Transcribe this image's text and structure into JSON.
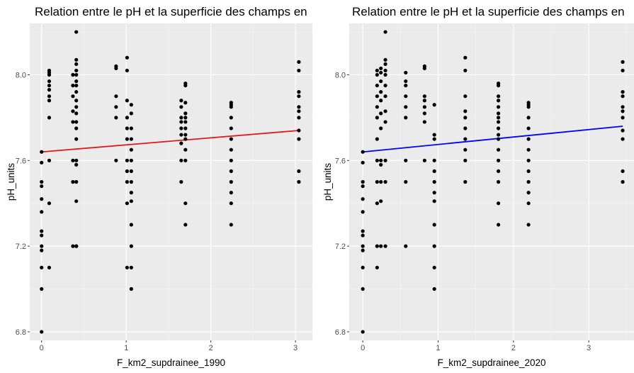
{
  "chart_data": [
    {
      "type": "scatter",
      "title": "Relation entre le pH et la superficie des champs en",
      "xlabel": "F_km2_supdrainee_1990",
      "ylabel": "pH_units",
      "xlim": [
        -0.14,
        3.2
      ],
      "ylim": [
        6.76,
        8.24
      ],
      "x_ticks": [
        0,
        1,
        2,
        3
      ],
      "x_tick_labels": [
        "0",
        "1",
        "2",
        "3"
      ],
      "y_ticks": [
        6.8,
        7.2,
        7.6,
        8.0
      ],
      "y_tick_labels": [
        "6.8",
        "7.2",
        "7.6",
        "8.0"
      ],
      "grid": true,
      "fit_line": {
        "x": [
          0,
          3.04
        ],
        "y": [
          7.64,
          7.74
        ],
        "color": "#e31a1c"
      },
      "points": [
        [
          0,
          6.8
        ],
        [
          0,
          7.0
        ],
        [
          0,
          7.1
        ],
        [
          0,
          7.18
        ],
        [
          0,
          7.2
        ],
        [
          0,
          7.25
        ],
        [
          0,
          7.27
        ],
        [
          0,
          7.36
        ],
        [
          0,
          7.42
        ],
        [
          0,
          7.48
        ],
        [
          0,
          7.5
        ],
        [
          0,
          7.59
        ],
        [
          0,
          7.64
        ],
        [
          0.09,
          7.1
        ],
        [
          0.09,
          7.4
        ],
        [
          0.09,
          7.6
        ],
        [
          0.09,
          7.8
        ],
        [
          0.09,
          7.88
        ],
        [
          0.09,
          7.9
        ],
        [
          0.09,
          7.93
        ],
        [
          0.09,
          7.95
        ],
        [
          0.09,
          7.97
        ],
        [
          0.09,
          8.0
        ],
        [
          0.09,
          8.01
        ],
        [
          0.09,
          8.02
        ],
        [
          0.41,
          7.2
        ],
        [
          0.41,
          7.2
        ],
        [
          0.41,
          7.41
        ],
        [
          0.41,
          7.5
        ],
        [
          0.41,
          7.58
        ],
        [
          0.41,
          7.6
        ],
        [
          0.41,
          7.7
        ],
        [
          0.41,
          7.75
        ],
        [
          0.41,
          7.78
        ],
        [
          0.41,
          7.82
        ],
        [
          0.41,
          7.85
        ],
        [
          0.41,
          7.88
        ],
        [
          0.41,
          7.92
        ],
        [
          0.41,
          7.95
        ],
        [
          0.41,
          7.97
        ],
        [
          0.41,
          8.0
        ],
        [
          0.41,
          8.02
        ],
        [
          0.41,
          8.05
        ],
        [
          0.41,
          8.07
        ],
        [
          0.41,
          8.2
        ],
        [
          0.37,
          7.2
        ],
        [
          0.37,
          7.5
        ],
        [
          0.37,
          7.6
        ],
        [
          0.37,
          7.78
        ],
        [
          0.37,
          7.83
        ],
        [
          0.37,
          7.9
        ],
        [
          0.37,
          7.95
        ],
        [
          0.37,
          8.0
        ],
        [
          0.88,
          7.6
        ],
        [
          0.88,
          7.8
        ],
        [
          0.88,
          7.85
        ],
        [
          0.88,
          7.9
        ],
        [
          0.88,
          8.03
        ],
        [
          0.88,
          8.04
        ],
        [
          1.01,
          7.1
        ],
        [
          1.01,
          7.4
        ],
        [
          1.01,
          7.5
        ],
        [
          1.01,
          7.55
        ],
        [
          1.01,
          7.6
        ],
        [
          1.01,
          7.7
        ],
        [
          1.01,
          7.75
        ],
        [
          1.01,
          7.8
        ],
        [
          1.01,
          7.88
        ],
        [
          1.01,
          8.02
        ],
        [
          1.01,
          8.08
        ],
        [
          1.06,
          7.0
        ],
        [
          1.06,
          7.1
        ],
        [
          1.06,
          7.2
        ],
        [
          1.06,
          7.3
        ],
        [
          1.06,
          7.41
        ],
        [
          1.06,
          7.45
        ],
        [
          1.06,
          7.5
        ],
        [
          1.06,
          7.55
        ],
        [
          1.06,
          7.6
        ],
        [
          1.06,
          7.65
        ],
        [
          1.06,
          7.7
        ],
        [
          1.06,
          7.75
        ],
        [
          1.06,
          7.82
        ],
        [
          1.06,
          7.86
        ],
        [
          1.65,
          7.5
        ],
        [
          1.65,
          7.6
        ],
        [
          1.65,
          7.68
        ],
        [
          1.65,
          7.72
        ],
        [
          1.65,
          7.75
        ],
        [
          1.65,
          7.78
        ],
        [
          1.65,
          7.8
        ],
        [
          1.65,
          7.85
        ],
        [
          1.65,
          7.88
        ],
        [
          1.7,
          7.3
        ],
        [
          1.7,
          7.4
        ],
        [
          1.7,
          7.6
        ],
        [
          1.7,
          7.65
        ],
        [
          1.7,
          7.7
        ],
        [
          1.7,
          7.72
        ],
        [
          1.7,
          7.75
        ],
        [
          1.7,
          7.78
        ],
        [
          1.7,
          7.8
        ],
        [
          1.7,
          7.82
        ],
        [
          1.7,
          7.87
        ],
        [
          1.7,
          7.95
        ],
        [
          1.7,
          7.96
        ],
        [
          2.24,
          7.3
        ],
        [
          2.24,
          7.4
        ],
        [
          2.24,
          7.45
        ],
        [
          2.24,
          7.5
        ],
        [
          2.24,
          7.55
        ],
        [
          2.24,
          7.6
        ],
        [
          2.24,
          7.65
        ],
        [
          2.24,
          7.7
        ],
        [
          2.24,
          7.75
        ],
        [
          2.24,
          7.8
        ],
        [
          2.24,
          7.85
        ],
        [
          2.24,
          7.86
        ],
        [
          2.24,
          7.87
        ],
        [
          3.04,
          7.5
        ],
        [
          3.04,
          7.55
        ],
        [
          3.04,
          7.7
        ],
        [
          3.04,
          7.74
        ],
        [
          3.04,
          7.8
        ],
        [
          3.04,
          7.83
        ],
        [
          3.04,
          7.85
        ],
        [
          3.04,
          7.9
        ],
        [
          3.04,
          7.92
        ],
        [
          3.04,
          8.02
        ],
        [
          3.04,
          8.06
        ]
      ]
    },
    {
      "type": "scatter",
      "title": "Relation entre le pH et la superficie des champs en",
      "xlabel": "F_km2_supdrainee_2020",
      "ylabel": "pH_units",
      "xlim": [
        -0.18,
        3.6
      ],
      "ylim": [
        6.76,
        8.24
      ],
      "x_ticks": [
        0,
        1,
        2,
        3
      ],
      "x_tick_labels": [
        "0",
        "1",
        "2",
        "3"
      ],
      "y_ticks": [
        6.8,
        7.2,
        7.6,
        8.0
      ],
      "y_tick_labels": [
        "6.8",
        "7.2",
        "7.6",
        "8.0"
      ],
      "grid": true,
      "fit_line": {
        "x": [
          0,
          3.45
        ],
        "y": [
          7.64,
          7.76
        ],
        "color": "#0000ff"
      },
      "points": [
        [
          0,
          6.8
        ],
        [
          0,
          7.0
        ],
        [
          0,
          7.1
        ],
        [
          0,
          7.18
        ],
        [
          0,
          7.2
        ],
        [
          0,
          7.25
        ],
        [
          0,
          7.27
        ],
        [
          0,
          7.36
        ],
        [
          0,
          7.42
        ],
        [
          0,
          7.48
        ],
        [
          0,
          7.5
        ],
        [
          0,
          7.59
        ],
        [
          0,
          7.64
        ],
        [
          0.19,
          7.1
        ],
        [
          0.19,
          7.2
        ],
        [
          0.19,
          7.4
        ],
        [
          0.19,
          7.5
        ],
        [
          0.19,
          7.6
        ],
        [
          0.19,
          7.7
        ],
        [
          0.19,
          7.8
        ],
        [
          0.19,
          7.85
        ],
        [
          0.19,
          7.9
        ],
        [
          0.19,
          7.95
        ],
        [
          0.19,
          8.0
        ],
        [
          0.19,
          8.02
        ],
        [
          0.24,
          7.2
        ],
        [
          0.24,
          7.41
        ],
        [
          0.24,
          7.5
        ],
        [
          0.24,
          7.58
        ],
        [
          0.24,
          7.6
        ],
        [
          0.24,
          7.75
        ],
        [
          0.24,
          7.82
        ],
        [
          0.24,
          7.88
        ],
        [
          0.24,
          7.92
        ],
        [
          0.24,
          7.97
        ],
        [
          0.24,
          8.01
        ],
        [
          0.24,
          8.03
        ],
        [
          0.3,
          7.2
        ],
        [
          0.3,
          7.5
        ],
        [
          0.3,
          7.6
        ],
        [
          0.3,
          7.78
        ],
        [
          0.3,
          7.83
        ],
        [
          0.3,
          7.9
        ],
        [
          0.3,
          7.95
        ],
        [
          0.3,
          8.0
        ],
        [
          0.3,
          8.02
        ],
        [
          0.3,
          8.05
        ],
        [
          0.3,
          8.07
        ],
        [
          0.3,
          8.2
        ],
        [
          0.57,
          7.2
        ],
        [
          0.57,
          7.5
        ],
        [
          0.57,
          7.6
        ],
        [
          0.57,
          7.8
        ],
        [
          0.57,
          7.85
        ],
        [
          0.57,
          7.9
        ],
        [
          0.57,
          7.95
        ],
        [
          0.57,
          7.97
        ],
        [
          0.57,
          8.01
        ],
        [
          0.82,
          7.6
        ],
        [
          0.82,
          7.78
        ],
        [
          0.82,
          7.82
        ],
        [
          0.82,
          7.85
        ],
        [
          0.82,
          7.88
        ],
        [
          0.82,
          7.9
        ],
        [
          0.82,
          8.03
        ],
        [
          0.82,
          8.04
        ],
        [
          0.95,
          7.0
        ],
        [
          0.95,
          7.1
        ],
        [
          0.95,
          7.2
        ],
        [
          0.95,
          7.3
        ],
        [
          0.95,
          7.41
        ],
        [
          0.95,
          7.45
        ],
        [
          0.95,
          7.5
        ],
        [
          0.95,
          7.55
        ],
        [
          0.95,
          7.6
        ],
        [
          0.95,
          7.7
        ],
        [
          0.95,
          7.72
        ],
        [
          0.95,
          7.86
        ],
        [
          1.36,
          7.5
        ],
        [
          1.36,
          7.6
        ],
        [
          1.36,
          7.65
        ],
        [
          1.36,
          7.7
        ],
        [
          1.36,
          7.75
        ],
        [
          1.36,
          7.8
        ],
        [
          1.36,
          7.83
        ],
        [
          1.36,
          7.9
        ],
        [
          1.36,
          8.02
        ],
        [
          1.36,
          8.08
        ],
        [
          1.8,
          7.3
        ],
        [
          1.8,
          7.4
        ],
        [
          1.8,
          7.5
        ],
        [
          1.8,
          7.55
        ],
        [
          1.8,
          7.6
        ],
        [
          1.8,
          7.65
        ],
        [
          1.8,
          7.7
        ],
        [
          1.8,
          7.72
        ],
        [
          1.8,
          7.75
        ],
        [
          1.8,
          7.78
        ],
        [
          1.8,
          7.8
        ],
        [
          1.8,
          7.82
        ],
        [
          1.8,
          7.85
        ],
        [
          1.8,
          7.88
        ],
        [
          1.8,
          7.9
        ],
        [
          1.8,
          7.95
        ],
        [
          1.8,
          7.96
        ],
        [
          2.2,
          7.3
        ],
        [
          2.2,
          7.4
        ],
        [
          2.2,
          7.45
        ],
        [
          2.2,
          7.5
        ],
        [
          2.2,
          7.55
        ],
        [
          2.2,
          7.6
        ],
        [
          2.2,
          7.65
        ],
        [
          2.2,
          7.7
        ],
        [
          2.2,
          7.75
        ],
        [
          2.2,
          7.8
        ],
        [
          2.2,
          7.85
        ],
        [
          2.2,
          7.86
        ],
        [
          2.2,
          7.87
        ],
        [
          3.45,
          7.5
        ],
        [
          3.45,
          7.55
        ],
        [
          3.45,
          7.7
        ],
        [
          3.45,
          7.74
        ],
        [
          3.45,
          7.8
        ],
        [
          3.45,
          7.83
        ],
        [
          3.45,
          7.85
        ],
        [
          3.45,
          7.9
        ],
        [
          3.45,
          7.92
        ],
        [
          3.45,
          8.02
        ],
        [
          3.45,
          8.06
        ]
      ]
    }
  ]
}
